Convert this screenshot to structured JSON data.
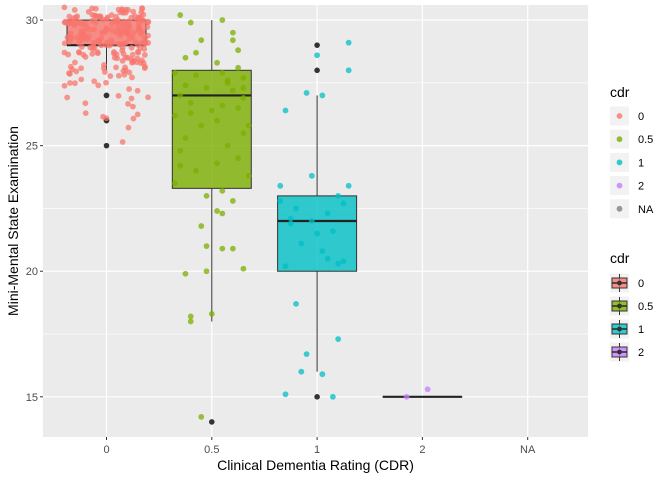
{
  "chart_data": {
    "type": "boxplot_jitter",
    "xlabel": "Clinical Dementia Rating (CDR)",
    "ylabel": "Mini-Mental State Examination",
    "categories": [
      "0",
      "0.5",
      "1",
      "2",
      "NA"
    ],
    "ylim": [
      13.4,
      30.6
    ],
    "yticks": [
      15,
      20,
      25,
      30
    ],
    "grid": true,
    "legend_position": "right",
    "colors": {
      "0": "#F8766D",
      "0.5": "#7CAE00",
      "1": "#00BFC4",
      "2": "#C77CFF",
      "NA": "#7F7F7F"
    },
    "boxes": [
      {
        "category": "0",
        "q1": 29,
        "median": 29,
        "q3": 30,
        "whisker_low": 28,
        "whisker_high": 30,
        "outliers": [
          27,
          27,
          26,
          26,
          25
        ]
      },
      {
        "category": "0.5",
        "q1": 23.3,
        "median": 27,
        "q3": 28,
        "whisker_low": 18,
        "whisker_high": 30,
        "outliers": [
          14
        ]
      },
      {
        "category": "1",
        "q1": 20,
        "median": 22,
        "q3": 23,
        "whisker_low": 16,
        "whisker_high": 27,
        "outliers": [
          29,
          28,
          15
        ]
      },
      {
        "category": "2",
        "q1": 15,
        "median": 15,
        "q3": 15,
        "whisker_low": 15,
        "whisker_high": 15,
        "outliers": []
      }
    ],
    "points": {
      "0.5": [
        [
          -0.3,
          30.2
        ],
        [
          -0.2,
          29.9
        ],
        [
          0.1,
          30.0
        ],
        [
          0.2,
          29.5
        ],
        [
          -0.1,
          29.2
        ],
        [
          0.25,
          28.8
        ],
        [
          -0.25,
          28.5
        ],
        [
          0.05,
          28.3
        ],
        [
          -0.35,
          27.9
        ],
        [
          0.3,
          27.7
        ],
        [
          -0.15,
          27.8
        ],
        [
          0.15,
          27.5
        ],
        [
          -0.05,
          27.3
        ],
        [
          0.2,
          27.2
        ],
        [
          -0.3,
          27.0
        ],
        [
          0.3,
          26.9
        ],
        [
          -0.2,
          26.7
        ],
        [
          0.1,
          26.6
        ],
        [
          0.25,
          26.5
        ],
        [
          -0.35,
          26.2
        ],
        [
          0.05,
          26.0
        ],
        [
          -0.1,
          25.8
        ],
        [
          0.3,
          25.5
        ],
        [
          -0.25,
          25.3
        ],
        [
          0.15,
          25.0
        ],
        [
          -0.3,
          24.8
        ],
        [
          0.25,
          24.5
        ],
        [
          0.05,
          24.3
        ],
        [
          -0.15,
          24.0
        ],
        [
          0.35,
          23.8
        ],
        [
          -0.35,
          23.5
        ],
        [
          0.1,
          23.2
        ],
        [
          -0.05,
          23.0
        ],
        [
          0.2,
          22.8
        ],
        [
          0.05,
          22.4
        ],
        [
          0.1,
          22.3
        ],
        [
          -0.1,
          21.8
        ],
        [
          -0.05,
          21.0
        ],
        [
          0.1,
          20.9
        ],
        [
          0.2,
          20.9
        ],
        [
          -0.05,
          20.0
        ],
        [
          0.3,
          20.1
        ],
        [
          -0.25,
          19.9
        ],
        [
          0.0,
          18.3
        ],
        [
          -0.2,
          18.2
        ],
        [
          -0.2,
          18.0
        ],
        [
          -0.1,
          14.2
        ],
        [
          0.15,
          27.6
        ],
        [
          0.25,
          28.1
        ],
        [
          -0.25,
          27.4
        ],
        [
          0.35,
          25.8
        ],
        [
          0.0,
          26.4
        ],
        [
          -0.15,
          28.7
        ],
        [
          0.2,
          29.2
        ],
        [
          -0.3,
          24.2
        ],
        [
          0.1,
          27.9
        ],
        [
          -0.2,
          26.3
        ],
        [
          0.3,
          27.3
        ]
      ],
      "1": [
        [
          -0.3,
          26.4
        ],
        [
          0.3,
          29.1
        ],
        [
          0.3,
          28.0
        ],
        [
          0.0,
          28.6
        ],
        [
          -0.1,
          27.1
        ],
        [
          0.05,
          27.0
        ],
        [
          -0.35,
          23.4
        ],
        [
          0.2,
          23.0
        ],
        [
          -0.2,
          22.5
        ],
        [
          0.1,
          22.3
        ],
        [
          -0.05,
          22.0
        ],
        [
          -0.25,
          22.1
        ],
        [
          0.15,
          21.6
        ],
        [
          -0.15,
          21.1
        ],
        [
          0.25,
          20.4
        ],
        [
          -0.3,
          20.2
        ],
        [
          0.05,
          20.8
        ],
        [
          -0.2,
          18.7
        ],
        [
          0.3,
          23.4
        ],
        [
          -0.1,
          16.7
        ],
        [
          -0.15,
          16.0
        ],
        [
          0.05,
          15.9
        ],
        [
          0.2,
          17.3
        ],
        [
          -0.3,
          15.1
        ],
        [
          0.15,
          15.0
        ],
        [
          -0.05,
          23.8
        ],
        [
          0.25,
          22.7
        ],
        [
          -0.25,
          21.9
        ],
        [
          0.1,
          20.5
        ],
        [
          0.0,
          21.5
        ],
        [
          0.2,
          20.3
        ],
        [
          -0.35,
          22.8
        ]
      ],
      "2": [
        [
          -0.15,
          15.0
        ],
        [
          0.05,
          15.3
        ]
      ]
    }
  },
  "legends": [
    {
      "title": "cdr",
      "kind": "points",
      "entries": [
        {
          "label": "0",
          "color": "#F8766D"
        },
        {
          "label": "0.5",
          "color": "#7CAE00"
        },
        {
          "label": "1",
          "color": "#00BFC4"
        },
        {
          "label": "2",
          "color": "#C77CFF"
        },
        {
          "label": "NA",
          "color": "#7F7F7F"
        }
      ]
    },
    {
      "title": "cdr",
      "kind": "boxes",
      "entries": [
        {
          "label": "0",
          "color": "#F8766D"
        },
        {
          "label": "0.5",
          "color": "#7CAE00"
        },
        {
          "label": "1",
          "color": "#00BFC4"
        },
        {
          "label": "2",
          "color": "#C77CFF"
        }
      ]
    }
  ]
}
